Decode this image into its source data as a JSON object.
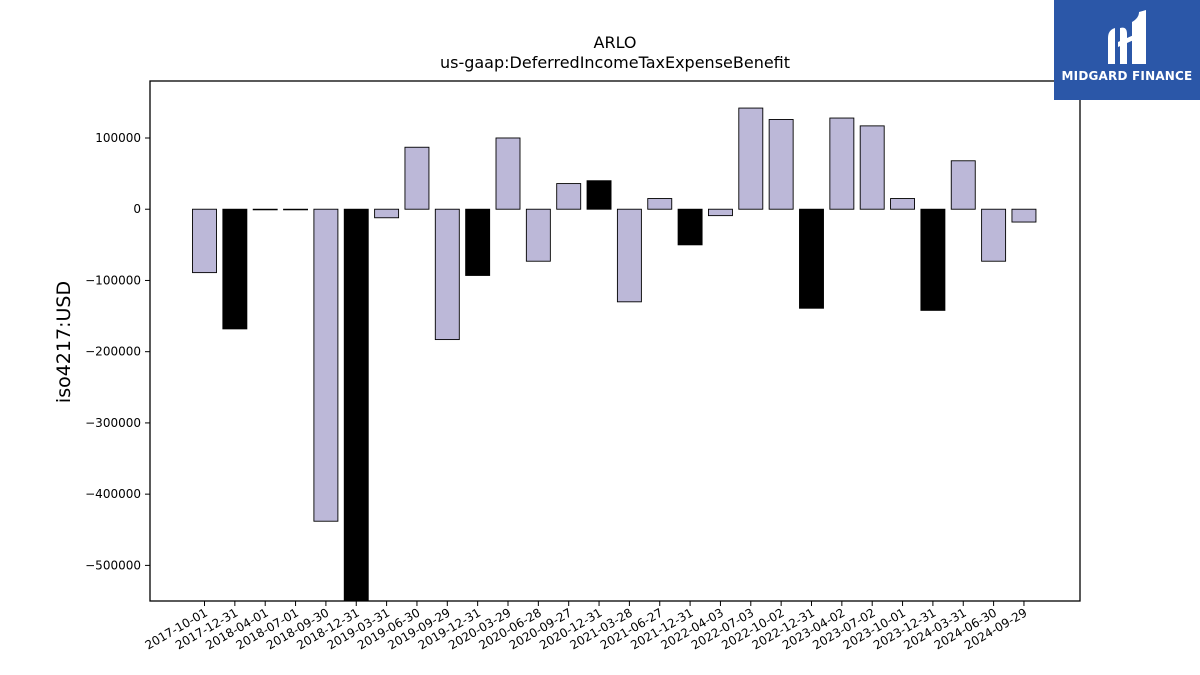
{
  "chart_data": {
    "type": "bar",
    "title": "ARLO",
    "subtitle": "us-gaap:DeferredIncomeTaxExpenseBenefit",
    "xlabel": "",
    "ylabel": "iso4217:USD",
    "ylim": [
      -550000,
      180000
    ],
    "yticks": [
      100000,
      0,
      -100000,
      -200000,
      -300000,
      -400000,
      -500000
    ],
    "ytick_labels": [
      "100000",
      "0",
      "−100000",
      "−200000",
      "−300000",
      "−400000",
      "−500000"
    ],
    "grid": false,
    "categories": [
      "2017-10-01",
      "2017-12-31",
      "2018-04-01",
      "2018-07-01",
      "2018-09-30",
      "2018-12-31",
      "2019-03-31",
      "2019-06-30",
      "2019-09-29",
      "2019-12-31",
      "2020-03-29",
      "2020-06-28",
      "2020-09-27",
      "2020-12-31",
      "2021-03-28",
      "2021-06-27",
      "2021-12-31",
      "2022-04-03",
      "2022-07-03",
      "2022-10-02",
      "2022-12-31",
      "2023-04-02",
      "2023-07-02",
      "2023-10-01",
      "2023-12-31",
      "2024-03-31",
      "2024-06-30",
      "2024-09-29"
    ],
    "values": [
      -89000,
      -168000,
      -500,
      -500,
      -438000,
      -560000,
      -12000,
      87000,
      -183000,
      -93000,
      100000,
      -73000,
      36000,
      40000,
      -130000,
      15000,
      -50000,
      -9000,
      142000,
      126000,
      -139000,
      128000,
      117000,
      15000,
      -142000,
      68000,
      -73000,
      -18000
    ],
    "highlight": [
      false,
      true,
      false,
      false,
      false,
      true,
      false,
      false,
      false,
      true,
      false,
      false,
      false,
      true,
      false,
      false,
      true,
      false,
      false,
      false,
      true,
      false,
      false,
      false,
      true,
      false,
      false,
      false
    ],
    "colors": {
      "normal": "#bcb8d8",
      "highlight": "#000000",
      "edge": "#000000"
    }
  },
  "logo": {
    "text": "MIDGARD FINANCE",
    "background": "#2b57a8"
  }
}
